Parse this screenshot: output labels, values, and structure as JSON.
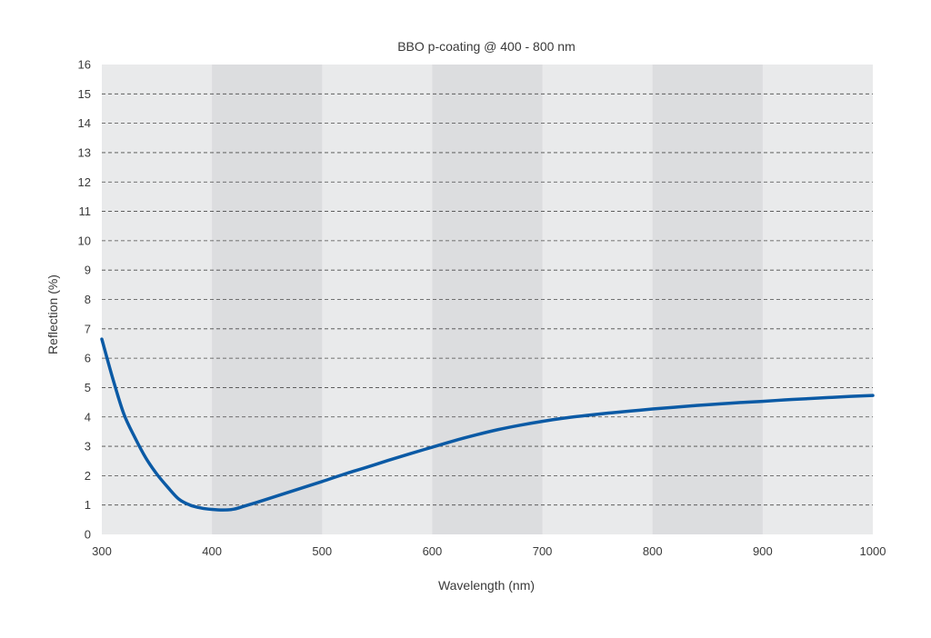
{
  "chart_data": {
    "type": "line",
    "title": "BBO p-coating @ 400 - 800 nm",
    "xlabel": "Wavelength (nm)",
    "ylabel": "Reflection (%)",
    "xlim": [
      300,
      1000
    ],
    "ylim": [
      0,
      16
    ],
    "xticks": [
      "300",
      "400",
      "500",
      "600",
      "700",
      "800",
      "900",
      "1000"
    ],
    "yticks": [
      "0",
      "1",
      "2",
      "3",
      "4",
      "5",
      "6",
      "7",
      "8",
      "9",
      "10",
      "11",
      "12",
      "13",
      "14",
      "15",
      "16"
    ],
    "grid": true,
    "shaded_bands": [
      [
        400,
        500
      ],
      [
        600,
        700
      ],
      [
        800,
        900
      ]
    ],
    "colors": {
      "line": "#0b5aa5",
      "plot_bg": "#e9eaeb",
      "band": "#dcdddf",
      "grid": "#4a4a4a"
    },
    "series": [
      {
        "x": [
          300,
          310,
          320,
          330,
          340,
          350,
          360,
          370,
          380,
          390,
          400,
          410,
          420,
          430,
          440,
          460,
          480,
          500,
          520,
          540,
          560,
          580,
          600,
          620,
          640,
          660,
          680,
          700,
          720,
          740,
          760,
          780,
          800,
          820,
          840,
          860,
          880,
          900,
          920,
          940,
          960,
          980,
          1000
        ],
        "y": [
          6.65,
          5.3,
          4.1,
          3.3,
          2.6,
          2.05,
          1.6,
          1.2,
          1.0,
          0.9,
          0.85,
          0.83,
          0.86,
          0.97,
          1.08,
          1.32,
          1.56,
          1.8,
          2.05,
          2.28,
          2.52,
          2.75,
          2.97,
          3.19,
          3.39,
          3.57,
          3.72,
          3.85,
          3.96,
          4.05,
          4.13,
          4.2,
          4.27,
          4.33,
          4.39,
          4.44,
          4.49,
          4.53,
          4.58,
          4.62,
          4.66,
          4.7,
          4.73
        ]
      }
    ]
  }
}
